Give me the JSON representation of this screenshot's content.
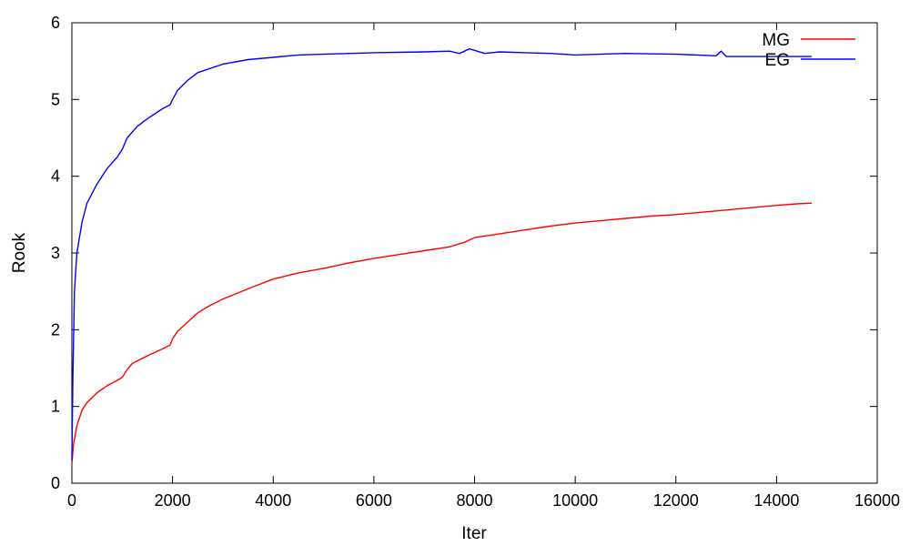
{
  "chart_data": {
    "type": "line",
    "title": "",
    "xlabel": "Iter",
    "ylabel": "Rook",
    "xlim": [
      0,
      16000
    ],
    "ylim": [
      0,
      6
    ],
    "xticks": [
      0,
      2000,
      4000,
      6000,
      8000,
      10000,
      12000,
      14000,
      16000
    ],
    "yticks": [
      0,
      1,
      2,
      3,
      4,
      5,
      6
    ],
    "grid": false,
    "legend_position": "top-right",
    "series": [
      {
        "name": "MG",
        "color": "#ff0000",
        "x": [
          0,
          30,
          100,
          200,
          300,
          500,
          700,
          900,
          1000,
          1100,
          1200,
          1500,
          1800,
          1950,
          2000,
          2100,
          2300,
          2500,
          2700,
          3000,
          3300,
          3600,
          4000,
          4500,
          5000,
          5500,
          6000,
          6500,
          7000,
          7500,
          7800,
          8000,
          8500,
          9000,
          9500,
          10000,
          10500,
          11000,
          11500,
          12000,
          12500,
          13000,
          13500,
          14000,
          14400,
          14700
        ],
        "y": [
          0.25,
          0.5,
          0.75,
          0.95,
          1.05,
          1.18,
          1.27,
          1.34,
          1.38,
          1.48,
          1.56,
          1.66,
          1.75,
          1.8,
          1.88,
          1.98,
          2.1,
          2.22,
          2.3,
          2.4,
          2.48,
          2.56,
          2.66,
          2.74,
          2.8,
          2.87,
          2.93,
          2.98,
          3.03,
          3.08,
          3.14,
          3.2,
          3.25,
          3.3,
          3.35,
          3.39,
          3.42,
          3.45,
          3.48,
          3.5,
          3.53,
          3.56,
          3.59,
          3.62,
          3.64,
          3.65
        ]
      },
      {
        "name": "EG",
        "color": "#0000ff",
        "x": [
          0,
          20,
          50,
          100,
          200,
          300,
          500,
          700,
          900,
          1000,
          1100,
          1300,
          1500,
          1800,
          1950,
          2000,
          2100,
          2300,
          2500,
          3000,
          3500,
          4000,
          4500,
          5000,
          6000,
          7000,
          7500,
          7700,
          7900,
          8200,
          8500,
          9000,
          9500,
          10000,
          11000,
          12000,
          12800,
          12900,
          13000,
          14000,
          14700
        ],
        "y": [
          0.3,
          1.4,
          2.5,
          3.0,
          3.4,
          3.65,
          3.9,
          4.1,
          4.25,
          4.35,
          4.5,
          4.65,
          4.75,
          4.88,
          4.93,
          5.0,
          5.12,
          5.25,
          5.35,
          5.46,
          5.52,
          5.55,
          5.58,
          5.59,
          5.61,
          5.62,
          5.63,
          5.6,
          5.66,
          5.6,
          5.62,
          5.61,
          5.6,
          5.58,
          5.6,
          5.59,
          5.57,
          5.63,
          5.56,
          5.56,
          5.56
        ]
      }
    ]
  }
}
